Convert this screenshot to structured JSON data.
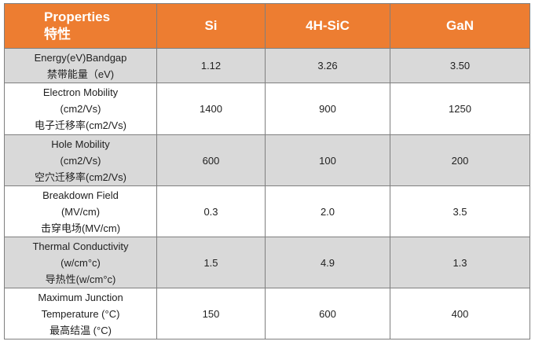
{
  "table": {
    "header": [
      [
        "Properties",
        "特性"
      ],
      [
        "Si"
      ],
      [
        "4H-SiC"
      ],
      [
        "GaN"
      ]
    ],
    "rows": [
      [
        [
          "Energy(eV)Bandgap",
          "禁带能量（eV)"
        ],
        [
          "1.12"
        ],
        [
          "3.26"
        ],
        [
          "3.50"
        ]
      ],
      [
        [
          "Electron Mobility",
          "(cm2/Vs)",
          "电子迁移率(cm2/Vs)"
        ],
        [
          "1400"
        ],
        [
          "900"
        ],
        [
          "1250"
        ]
      ],
      [
        [
          "Hole Mobility",
          "(cm2/Vs)",
          "空穴迁移率(cm2/Vs)"
        ],
        [
          "600"
        ],
        [
          "100"
        ],
        [
          "200"
        ]
      ],
      [
        [
          "Breakdown Field",
          "(MV/cm)",
          "击穿电场(MV/cm)"
        ],
        [
          "0.3"
        ],
        [
          "2.0"
        ],
        [
          "3.5"
        ]
      ],
      [
        [
          "Thermal Conductivity",
          "(w/cm°c)",
          "导热性(w/cm°c)"
        ],
        [
          "1.5"
        ],
        [
          "4.9"
        ],
        [
          "1.3"
        ]
      ],
      [
        [
          "Maximum Junction",
          "Temperature (°C)",
          "最高结温 (°C)"
        ],
        [
          "150"
        ],
        [
          "600"
        ],
        [
          "400"
        ]
      ]
    ]
  }
}
